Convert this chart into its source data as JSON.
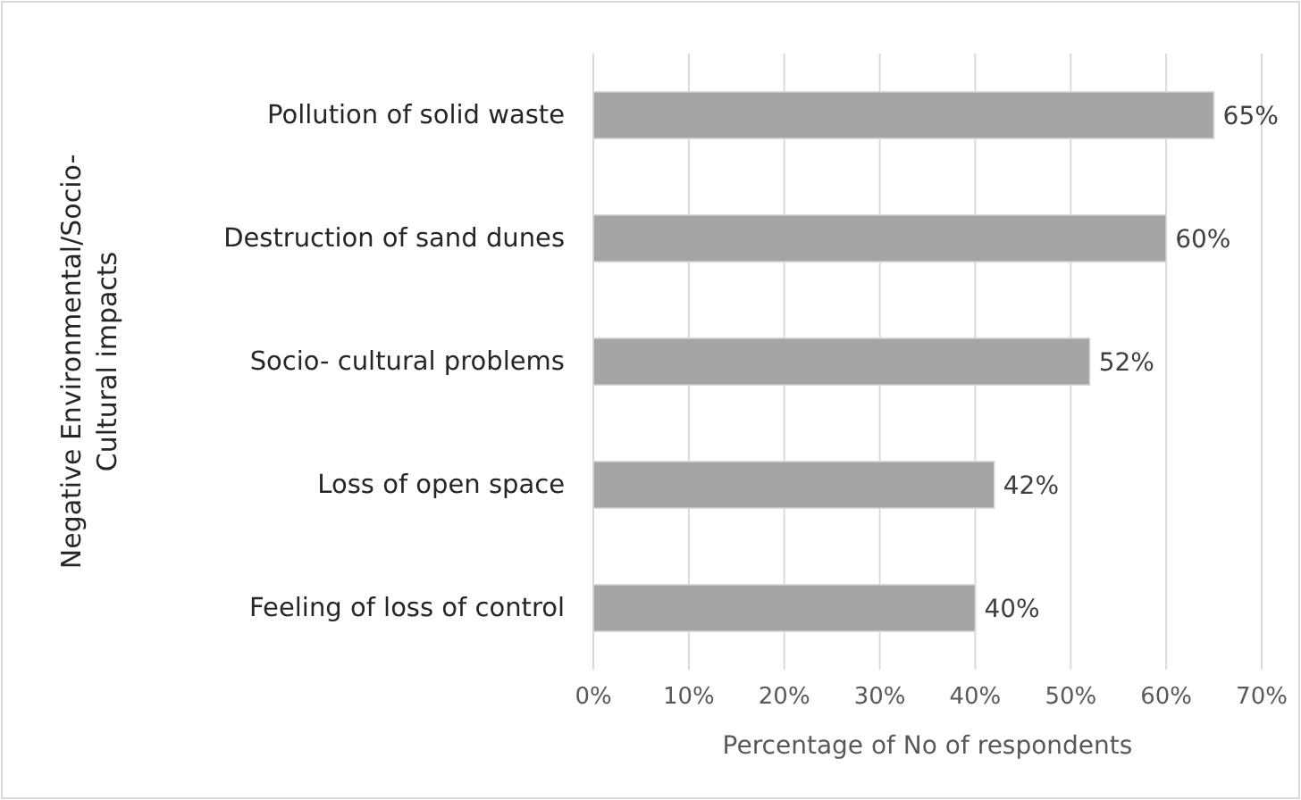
{
  "chart_data": {
    "type": "bar",
    "orientation": "horizontal",
    "categories": [
      "Pollution of solid waste",
      "Destruction of sand dunes",
      "Socio- cultural problems",
      "Loss of open space",
      "Feeling of loss of control"
    ],
    "values": [
      65,
      60,
      52,
      42,
      40
    ],
    "value_labels": [
      "65%",
      "60%",
      "52%",
      "42%",
      "40%"
    ],
    "color": "#a5a5a5",
    "xlabel": "Percentage of No of respondents",
    "ylabel": "Negative Environmental/Socio- Cultural impacts",
    "xlim": [
      0,
      70
    ],
    "xticks": [
      {
        "value": 0,
        "label": "0%"
      },
      {
        "value": 10,
        "label": "10%"
      },
      {
        "value": 20,
        "label": "20%"
      },
      {
        "value": 30,
        "label": "30%"
      },
      {
        "value": 40,
        "label": "40%"
      },
      {
        "value": 50,
        "label": "50%"
      },
      {
        "value": 60,
        "label": "60%"
      },
      {
        "value": 70,
        "label": "70%"
      }
    ],
    "grid": "x"
  }
}
